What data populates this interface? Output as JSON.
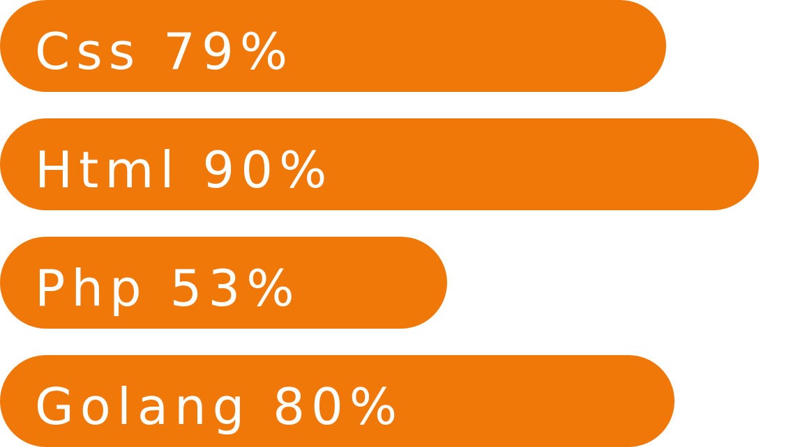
{
  "chart_data": {
    "type": "bar",
    "orientation": "horizontal",
    "categories": [
      "Css",
      "Html",
      "Php",
      "Golang"
    ],
    "values": [
      79,
      90,
      53,
      80
    ],
    "unit": "%",
    "bar_color": "#F07808",
    "label_color": "#FFFFFF",
    "title": "",
    "xlabel": "",
    "ylabel": "",
    "grid": false
  }
}
